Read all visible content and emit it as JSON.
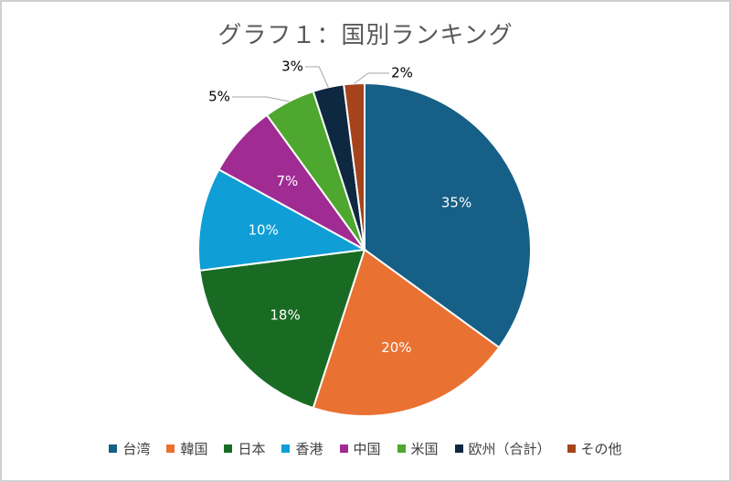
{
  "chart_data": {
    "type": "pie",
    "title": "グラフ１：国別ランキング",
    "categories": [
      "台湾",
      "韓国",
      "日本",
      "香港",
      "中国",
      "米国",
      "欧州（合計）",
      "その他"
    ],
    "values": [
      35,
      20,
      18,
      10,
      7,
      5,
      3,
      2
    ],
    "data_labels": [
      "35%",
      "20%",
      "18%",
      "10%",
      "7%",
      "5%",
      "3%",
      "2%"
    ],
    "colors": [
      "#165f86",
      "#e97132",
      "#196b24",
      "#0f9ed5",
      "#a02b93",
      "#4ea72e",
      "#0e2841",
      "#a5441c"
    ],
    "legend_position": "bottom"
  }
}
